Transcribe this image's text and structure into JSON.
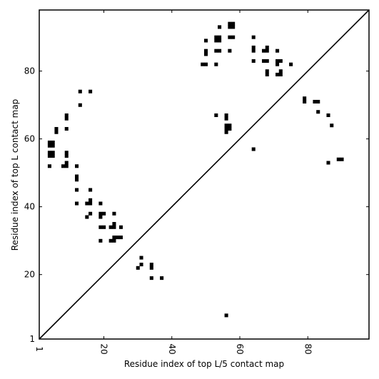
{
  "chart_data": {
    "type": "scatter",
    "title": "",
    "xlabel": "Residue index of top L/5 contact map",
    "ylabel": "Residue index of top L contact map",
    "xlim": [
      1,
      98
    ],
    "ylim": [
      1,
      98
    ],
    "xticks": [
      1,
      20,
      40,
      60,
      80
    ],
    "yticks": [
      1,
      20,
      40,
      60,
      80
    ],
    "diagonal": true,
    "marker": "square",
    "color": "#000000",
    "points": [
      [
        5,
        55
      ],
      [
        5,
        56
      ],
      [
        5,
        58
      ],
      [
        5,
        59
      ],
      [
        4,
        55
      ],
      [
        4,
        56
      ],
      [
        4,
        58
      ],
      [
        4,
        59
      ],
      [
        4,
        52
      ],
      [
        6,
        62
      ],
      [
        6,
        63
      ],
      [
        8,
        52
      ],
      [
        9,
        52
      ],
      [
        9,
        53
      ],
      [
        9,
        55
      ],
      [
        9,
        56
      ],
      [
        9,
        63
      ],
      [
        9,
        66
      ],
      [
        9,
        67
      ],
      [
        12,
        52
      ],
      [
        12,
        48
      ],
      [
        12,
        49
      ],
      [
        12,
        45
      ],
      [
        12,
        41
      ],
      [
        13,
        70
      ],
      [
        13,
        74
      ],
      [
        16,
        74
      ],
      [
        16,
        45
      ],
      [
        16,
        42
      ],
      [
        16,
        41
      ],
      [
        15,
        41
      ],
      [
        16,
        38
      ],
      [
        15,
        37
      ],
      [
        19,
        41
      ],
      [
        19,
        38
      ],
      [
        20,
        38
      ],
      [
        19,
        37
      ],
      [
        19,
        34
      ],
      [
        20,
        34
      ],
      [
        19,
        30
      ],
      [
        22,
        30
      ],
      [
        23,
        30
      ],
      [
        23,
        31
      ],
      [
        24,
        31
      ],
      [
        25,
        31
      ],
      [
        22,
        34
      ],
      [
        23,
        34
      ],
      [
        23,
        35
      ],
      [
        25,
        34
      ],
      [
        23,
        38
      ],
      [
        30,
        22
      ],
      [
        31,
        23
      ],
      [
        31,
        25
      ],
      [
        34,
        22
      ],
      [
        34,
        23
      ],
      [
        34,
        19
      ],
      [
        37,
        19
      ],
      [
        49,
        82
      ],
      [
        50,
        82
      ],
      [
        50,
        85
      ],
      [
        50,
        86
      ],
      [
        50,
        89
      ],
      [
        53,
        82
      ],
      [
        53,
        86
      ],
      [
        54,
        86
      ],
      [
        53,
        89
      ],
      [
        54,
        89
      ],
      [
        53,
        90
      ],
      [
        54,
        90
      ],
      [
        54,
        93
      ],
      [
        57,
        86
      ],
      [
        57,
        90
      ],
      [
        58,
        90
      ],
      [
        57,
        93
      ],
      [
        58,
        93
      ],
      [
        57,
        94
      ],
      [
        58,
        94
      ],
      [
        53,
        67
      ],
      [
        56,
        66
      ],
      [
        56,
        67
      ],
      [
        56,
        62
      ],
      [
        56,
        63
      ],
      [
        57,
        63
      ],
      [
        56,
        64
      ],
      [
        57,
        64
      ],
      [
        64,
        83
      ],
      [
        64,
        86
      ],
      [
        64,
        87
      ],
      [
        64,
        90
      ],
      [
        67,
        83
      ],
      [
        68,
        83
      ],
      [
        67,
        86
      ],
      [
        68,
        86
      ],
      [
        68,
        87
      ],
      [
        68,
        79
      ],
      [
        68,
        80
      ],
      [
        71,
        79
      ],
      [
        72,
        79
      ],
      [
        72,
        80
      ],
      [
        71,
        82
      ],
      [
        71,
        83
      ],
      [
        72,
        83
      ],
      [
        71,
        86
      ],
      [
        75,
        82
      ],
      [
        79,
        71
      ],
      [
        79,
        72
      ],
      [
        82,
        71
      ],
      [
        83,
        71
      ],
      [
        83,
        68
      ],
      [
        86,
        67
      ],
      [
        87,
        64
      ],
      [
        86,
        53
      ],
      [
        89,
        54
      ],
      [
        90,
        54
      ],
      [
        64,
        57
      ],
      [
        56,
        8
      ]
    ]
  }
}
